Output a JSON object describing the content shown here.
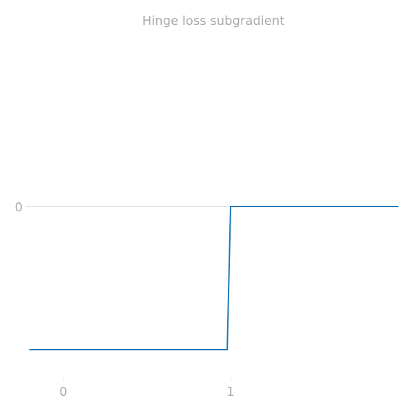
{
  "chart_data": {
    "type": "line",
    "title": "Hinge loss subgradient",
    "xlabel": "",
    "ylabel": "",
    "xlim": [
      -0.2,
      2.0
    ],
    "ylim": [
      -1.2,
      1.2
    ],
    "x_ticks": [
      0,
      1
    ],
    "x_tick_labels": [
      "0",
      "1"
    ],
    "y_ticks": [
      0
    ],
    "y_tick_labels": [
      "0"
    ],
    "grid": "horizontal at y=0",
    "legend": "none",
    "series": [
      {
        "color": "#1f77b4",
        "points": [
          {
            "x": -0.2,
            "y": -1
          },
          {
            "x": 0.98,
            "y": -1
          },
          {
            "x": 1.0,
            "y": 0
          },
          {
            "x": 2.0,
            "y": 0
          }
        ]
      }
    ]
  }
}
